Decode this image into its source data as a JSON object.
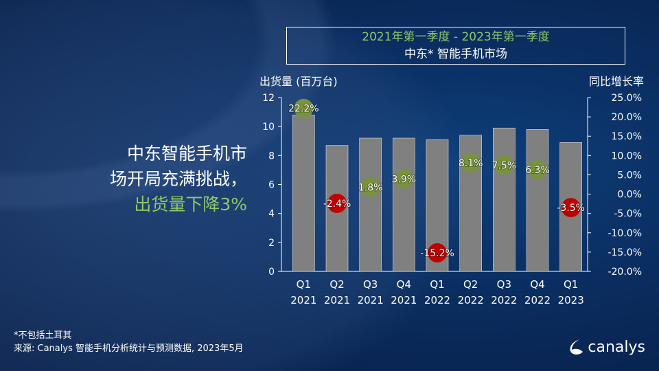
{
  "title": {
    "line1": "2021年第一季度 - 2023年第一季度",
    "line2": "中东* 智能手机市场"
  },
  "headline": {
    "line1": "中东智能手机市",
    "line2": "场开局充满挑战，",
    "line3": "出货量下降3%"
  },
  "footnote": "*不包括土耳其",
  "source": "来源: Canalys 智能手机分析统计与预测数据, 2023年5月",
  "logo": "canalys",
  "colors": {
    "bar": "#808080",
    "positive": "#77933c",
    "negative": "#c00000",
    "accent": "#8fc966"
  },
  "chart_data": {
    "type": "bar",
    "title": "",
    "ylabel": "出货量 (百万台)",
    "y2label": "同比增长率",
    "ylim": [
      0,
      12
    ],
    "y2lim": [
      -20,
      25
    ],
    "yticks": [
      "0",
      "2",
      "4",
      "6",
      "8",
      "10",
      "12"
    ],
    "y2ticks": [
      "-20.0%",
      "-15.0%",
      "-10.0%",
      "-5.0%",
      "0.0%",
      "5.0%",
      "10.0%",
      "15.0%",
      "20.0%",
      "25.0%"
    ],
    "categories": [
      [
        "Q1",
        "2021"
      ],
      [
        "Q2",
        "2021"
      ],
      [
        "Q3",
        "2021"
      ],
      [
        "Q4",
        "2021"
      ],
      [
        "Q1",
        "2022"
      ],
      [
        "Q2",
        "2022"
      ],
      [
        "Q3",
        "2022"
      ],
      [
        "Q4",
        "2022"
      ],
      [
        "Q1",
        "2023"
      ]
    ],
    "series": [
      {
        "name": "出货量 (百万台)",
        "type": "bar",
        "values": [
          10.8,
          8.7,
          9.2,
          9.2,
          9.1,
          9.4,
          9.9,
          9.8,
          8.9
        ]
      },
      {
        "name": "同比增长率",
        "type": "scatter",
        "values": [
          22.2,
          -2.4,
          1.8,
          3.9,
          -15.2,
          8.1,
          7.5,
          6.3,
          -3.5
        ],
        "labels": [
          "22.2%",
          "-2.4%",
          "1.8%",
          "3.9%",
          "-15.2%",
          "8.1%",
          "7.5%",
          "6.3%",
          "-3.5%"
        ]
      }
    ]
  }
}
